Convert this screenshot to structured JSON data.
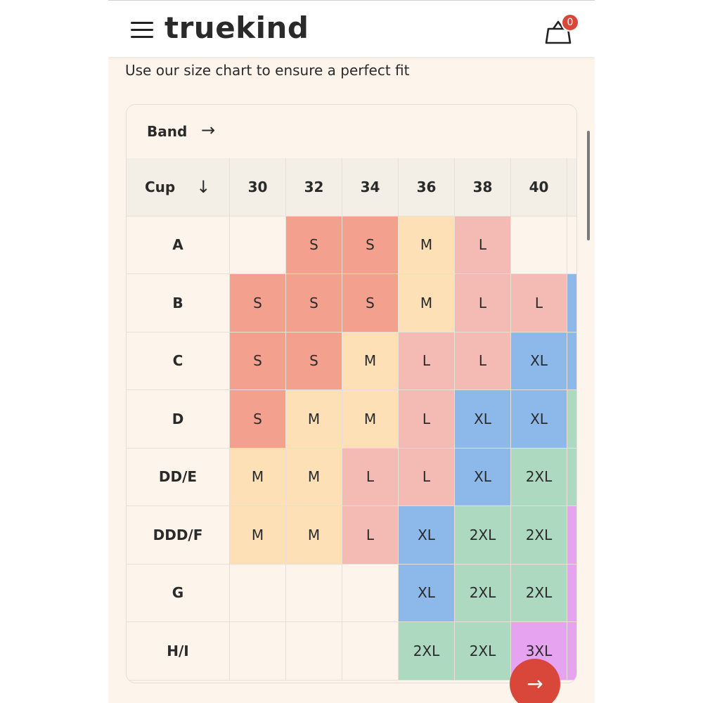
{
  "header": {
    "logo": "truekind",
    "cart_count": "0"
  },
  "subtitle": "Use our size chart to ensure a perfect fit",
  "table": {
    "band_label": "Band",
    "band_arrow": "→",
    "cup_label": "Cup",
    "cup_arrow": "↓",
    "band_sizes": [
      "30",
      "32",
      "34",
      "36",
      "38",
      "40"
    ],
    "rows": [
      {
        "cup": "A",
        "sizes": [
          "",
          "S",
          "S",
          "M",
          "L",
          ""
        ]
      },
      {
        "cup": "B",
        "sizes": [
          "S",
          "S",
          "S",
          "M",
          "L",
          "L"
        ]
      },
      {
        "cup": "C",
        "sizes": [
          "S",
          "S",
          "M",
          "L",
          "L",
          "XL"
        ]
      },
      {
        "cup": "D",
        "sizes": [
          "S",
          "M",
          "M",
          "L",
          "XL",
          "XL"
        ]
      },
      {
        "cup": "DD/E",
        "sizes": [
          "M",
          "M",
          "L",
          "L",
          "XL",
          "2XL"
        ]
      },
      {
        "cup": "DDD/F",
        "sizes": [
          "M",
          "M",
          "L",
          "XL",
          "2XL",
          "2XL"
        ]
      },
      {
        "cup": "G",
        "sizes": [
          "",
          "",
          "",
          "XL",
          "2XL",
          "2XL"
        ]
      },
      {
        "cup": "H/I",
        "sizes": [
          "",
          "",
          "",
          "2XL",
          "2XL",
          "3XL"
        ]
      }
    ],
    "partial_column_colors": [
      "",
      "#8db9ea",
      "#8db9ea",
      "#acd9c0",
      "#acd9c0",
      "#e6a4f0",
      "#e6a4f0",
      "#e6a4f0"
    ]
  },
  "colors": {
    "S": "#f4a08e",
    "M": "#fde0b6",
    "L": "#f4bbb4",
    "XL": "#8db9ea",
    "2XL": "#acd9c0",
    "3XL": "#e6a4f0",
    "empty": "#fdf5ec",
    "accent": "#d8473a"
  },
  "fab": {
    "label": "→"
  }
}
